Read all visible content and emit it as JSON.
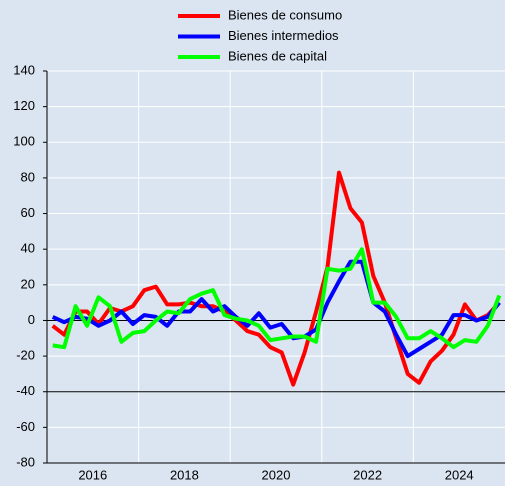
{
  "chart_data": {
    "type": "line",
    "x": [
      2015.125,
      2015.375,
      2015.625,
      2015.875,
      2016.125,
      2016.375,
      2016.625,
      2016.875,
      2017.125,
      2017.375,
      2017.625,
      2017.875,
      2018.125,
      2018.375,
      2018.625,
      2018.875,
      2019.125,
      2019.375,
      2019.625,
      2019.875,
      2020.125,
      2020.375,
      2020.625,
      2020.875,
      2021.125,
      2021.375,
      2021.625,
      2021.875,
      2022.125,
      2022.375,
      2022.625,
      2022.875,
      2023.125,
      2023.375,
      2023.625,
      2023.875,
      2024.125,
      2024.375,
      2024.625,
      2024.875
    ],
    "series": [
      {
        "name": "Bienes de consumo",
        "color": "#ff0000",
        "values": [
          -3,
          -8,
          5,
          5,
          -2,
          7,
          5,
          8,
          17,
          19,
          9,
          9,
          10,
          8,
          8,
          5,
          0,
          -6,
          -8,
          -15,
          -18,
          -36,
          -18,
          5,
          30,
          83,
          63,
          55,
          25,
          10,
          -10,
          -30,
          -35,
          -23,
          -17,
          -8,
          9,
          0,
          3,
          10
        ]
      },
      {
        "name": "Bienes intermedios",
        "color": "#0000ff",
        "values": [
          2,
          -1,
          2,
          1,
          -3,
          0,
          5,
          -2,
          3,
          2,
          -3,
          5,
          5,
          12,
          5,
          8,
          2,
          -3,
          4,
          -4,
          -2,
          -10,
          -9,
          -5,
          10,
          22,
          33,
          33,
          10,
          5,
          -8,
          -20,
          -16,
          -12,
          -8,
          3,
          3,
          0,
          2,
          10
        ]
      },
      {
        "name": "Bienes de capital",
        "color": "#00ff00",
        "values": [
          -14,
          -15,
          8,
          -3,
          13,
          8,
          -12,
          -7,
          -6,
          0,
          5,
          4,
          12,
          15,
          17,
          3,
          1,
          0,
          -3,
          -11,
          -10,
          -9,
          -9,
          -12,
          29,
          28,
          29,
          40,
          10,
          10,
          2,
          -10,
          -10,
          -6,
          -10,
          -15,
          -11,
          -12,
          -3,
          14
        ]
      }
    ],
    "xlim": [
      2015,
      2025
    ],
    "xticks": [
      2016,
      2018,
      2020,
      2022,
      2024
    ],
    "xgrid": [
      2017,
      2019,
      2021,
      2023
    ],
    "ylim": [
      -80,
      140
    ],
    "yticks": [
      -80,
      -60,
      -40,
      -20,
      0,
      20,
      40,
      60,
      80,
      100,
      120,
      140
    ],
    "reference_lines": [
      0,
      -40
    ],
    "grid": true
  }
}
